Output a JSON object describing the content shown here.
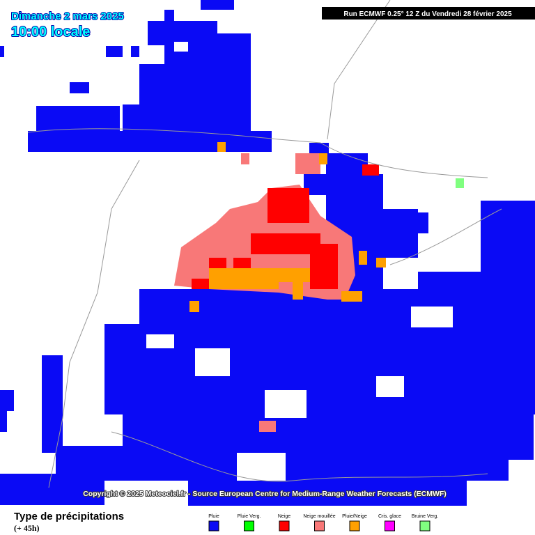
{
  "header": {
    "title": "Dimanche 2 mars 2025",
    "time": "10:00 locale",
    "run": "Run ECMWF 0.25° 12 Z du Vendredi 28 février 2025"
  },
  "copyright": "Copyright © 2025 Meteociel.fr - Source European Centre for Medium-Range Weather Forecasts (ECMWF)",
  "legend": {
    "title": "Type de précipitations",
    "lead": "(+ 45h)",
    "items": [
      {
        "label": "Pluie",
        "color": "#0a0af5"
      },
      {
        "label": "Pluie Verg.",
        "color": "#00ff00"
      },
      {
        "label": "Neige",
        "color": "#ff0000"
      },
      {
        "label": "Neige mouillée",
        "color": "#f87878"
      },
      {
        "label": "Pluie/Neige",
        "color": "#ffa000"
      },
      {
        "label": "Cris. glace",
        "color": "#ff00ff"
      },
      {
        "label": "Bruine Verg.",
        "color": "#80ff80"
      }
    ]
  }
}
